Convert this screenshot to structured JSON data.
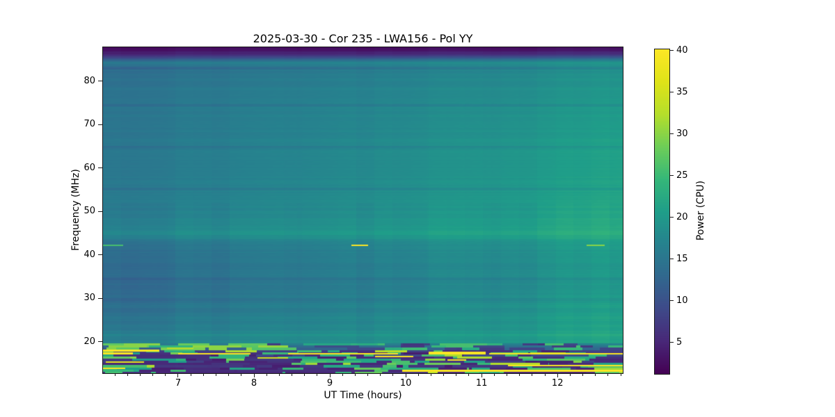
{
  "figure": {
    "title": "2025-03-30 - Cor 235 - LWA156 - Pol YY",
    "xlabel": "UT Time (hours)",
    "ylabel": "Frequency (MHz)",
    "colorbar_label": "Power (CPU)"
  },
  "chart_data": {
    "type": "heatmap",
    "title": "2025-03-30 - Cor 235 - LWA156 - Pol YY",
    "xlabel": "UT Time (hours)",
    "ylabel": "Frequency (MHz)",
    "x_range": [
      6.01,
      12.86
    ],
    "x_ticks": [
      7,
      8,
      9,
      10,
      11,
      12
    ],
    "x_minor_tick_step_hours": 0.16667,
    "y_range": [
      12.8,
      87.8
    ],
    "y_ticks": [
      20,
      30,
      40,
      50,
      60,
      70,
      80
    ],
    "grid": false,
    "colormap": "viridis",
    "colormap_stops": [
      [
        0.0,
        "#440154"
      ],
      [
        0.1,
        "#482878"
      ],
      [
        0.2,
        "#3e4a89"
      ],
      [
        0.3,
        "#31688e"
      ],
      [
        0.4,
        "#26828e"
      ],
      [
        0.5,
        "#1f9e89"
      ],
      [
        0.6,
        "#35b779"
      ],
      [
        0.7,
        "#6ece58"
      ],
      [
        0.8,
        "#b5de2b"
      ],
      [
        0.9,
        "#dfe318"
      ],
      [
        1.0,
        "#fde725"
      ]
    ],
    "colorbar": {
      "label": "Power (CPU)",
      "ticks": [
        5,
        10,
        15,
        20,
        25,
        30,
        35,
        40
      ],
      "range": [
        1.3,
        40.25
      ],
      "position": "right"
    },
    "background_profile": [
      [
        87.8,
        2.5,
        2.5
      ],
      [
        87.0,
        3.2,
        3.6
      ],
      [
        86.0,
        5.5,
        7.0
      ],
      [
        85.0,
        11.0,
        14.5
      ],
      [
        84.2,
        16.0,
        20.0
      ],
      [
        83.2,
        13.8,
        18.5
      ],
      [
        81.5,
        14.3,
        19.3
      ],
      [
        79.0,
        14.6,
        19.5
      ],
      [
        75.0,
        15.0,
        20.0
      ],
      [
        70.0,
        15.2,
        20.6
      ],
      [
        65.0,
        15.3,
        21.0
      ],
      [
        60.0,
        15.5,
        21.3
      ],
      [
        55.0,
        15.7,
        21.5
      ],
      [
        50.0,
        16.0,
        21.8
      ],
      [
        46.5,
        16.8,
        22.3
      ],
      [
        44.7,
        17.8,
        23.2
      ],
      [
        43.6,
        16.0,
        21.6
      ],
      [
        42.0,
        14.2,
        20.3
      ],
      [
        40.0,
        14.0,
        20.0
      ],
      [
        37.0,
        13.7,
        19.8
      ],
      [
        33.0,
        13.6,
        19.9
      ],
      [
        30.0,
        13.8,
        20.2
      ],
      [
        27.0,
        14.3,
        20.6
      ],
      [
        24.5,
        15.2,
        21.0
      ],
      [
        22.5,
        16.0,
        21.3
      ],
      [
        21.0,
        16.5,
        21.5
      ],
      [
        20.0,
        16.8,
        21.3
      ],
      [
        19.7,
        16.5,
        21.0
      ]
    ],
    "striation_rows": [
      {
        "f": 83.0,
        "d": -1.4
      },
      {
        "f": 74.5,
        "d": -1.3
      },
      {
        "f": 64.8,
        "d": -1.2
      },
      {
        "f": 55.2,
        "d": -1.1
      },
      {
        "f": 50.5,
        "d": -0.8
      },
      {
        "f": 34.5,
        "d": -1.0
      },
      {
        "f": 29.8,
        "d": -0.9
      },
      {
        "f": 28.2,
        "d": 0.9
      },
      {
        "f": 25.6,
        "d": 0.8
      },
      {
        "f": 21.5,
        "d": 1.0
      }
    ],
    "rfi_band": {
      "freq_top": 19.65,
      "freq_bottom": 12.8,
      "row_height_mhz": 0.5,
      "row_base_power": [
        15.5,
        13,
        11.5,
        8,
        6.5,
        9,
        6,
        5,
        8,
        5,
        7,
        4.5,
        6,
        5
      ]
    },
    "features": [
      {
        "t": [
          6.01,
          6.75
        ],
        "f": 18.15,
        "hm": 0.5,
        "p": 40
      },
      {
        "t": [
          6.85,
          7.2
        ],
        "f": 18.55,
        "hm": 0.35,
        "p": 33
      },
      {
        "t": [
          6.01,
          6.4
        ],
        "f": 17.45,
        "hm": 0.5,
        "p": 40
      },
      {
        "t": [
          7.0,
          7.95
        ],
        "f": 17.35,
        "hm": 0.35,
        "p": 40
      },
      {
        "t": [
          8.45,
          9.9
        ],
        "f": 17.3,
        "hm": 0.35,
        "p": 40
      },
      {
        "t": [
          10.3,
          11.05
        ],
        "f": 17.5,
        "hm": 0.7,
        "p": 40
      },
      {
        "t": [
          11.1,
          12.86
        ],
        "f": 17.3,
        "hm": 0.35,
        "p": 40
      },
      {
        "t": [
          9.6,
          10.1
        ],
        "f": 16.6,
        "hm": 0.35,
        "p": 40
      },
      {
        "t": [
          8.05,
          8.45
        ],
        "f": 16.35,
        "hm": 0.3,
        "p": 35
      },
      {
        "t": [
          10.55,
          10.8
        ],
        "f": 15.9,
        "hm": 0.35,
        "p": 40
      },
      {
        "t": [
          6.05,
          6.55
        ],
        "f": 15.35,
        "hm": 0.35,
        "p": 37
      },
      {
        "t": [
          11.35,
          12.86
        ],
        "f": 14.55,
        "hm": 0.35,
        "p": 40
      },
      {
        "t": [
          6.01,
          6.3
        ],
        "f": 13.95,
        "hm": 0.35,
        "p": 40
      },
      {
        "t": [
          9.95,
          12.86
        ],
        "f": 13.45,
        "hm": 0.45,
        "p": 40
      },
      {
        "t": [
          6.01,
          6.28
        ],
        "f": 42.2,
        "hm": 0.3,
        "p": 26
      },
      {
        "t": [
          9.28,
          9.5
        ],
        "f": 42.2,
        "hm": 0.35,
        "p": 40
      },
      {
        "t": [
          12.38,
          12.62
        ],
        "f": 42.2,
        "hm": 0.3,
        "p": 30
      }
    ],
    "notes": [
      "Dynamic spectrum: power increases gradually toward later UT times",
      "Dark absorbed band at top edge above ~86 MHz",
      "Bright horizontal band near 44-45 MHz",
      "Strong RFI with saturated yellow lines below ~19 MHz",
      "Short bright dashes at 42.2 MHz near 6.1, 9.4 and 12.5 UT"
    ]
  }
}
